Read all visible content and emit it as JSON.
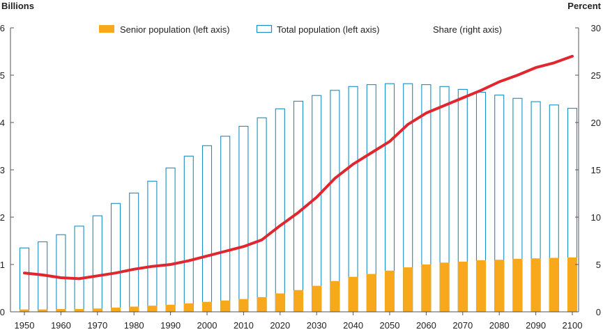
{
  "chart_data": {
    "type": "bar",
    "ylabel_left": "Billions",
    "ylabel_right": "Percent",
    "ylim_left": [
      0,
      6
    ],
    "ylim_right": [
      0,
      30
    ],
    "yticks_left": [
      "0",
      "1",
      "2",
      "3",
      "4",
      "5",
      "6"
    ],
    "yticks_right": [
      "0",
      "5",
      "10",
      "15",
      "20",
      "25",
      "30"
    ],
    "xticks": [
      "1950",
      "1960",
      "1970",
      "1980",
      "1990",
      "2000",
      "2010",
      "2020",
      "2030",
      "2040",
      "2050",
      "2060",
      "2070",
      "2080",
      "2090",
      "2100"
    ],
    "x": [
      1950,
      1955,
      1960,
      1965,
      1970,
      1975,
      1980,
      1985,
      1990,
      1995,
      2000,
      2005,
      2010,
      2015,
      2020,
      2025,
      2030,
      2035,
      2040,
      2045,
      2050,
      2055,
      2060,
      2065,
      2070,
      2075,
      2080,
      2085,
      2090,
      2095,
      2100
    ],
    "legend": [
      {
        "label": "Senior population (left axis)",
        "color": "#f7a81b",
        "style": "filled"
      },
      {
        "label": "Total population (left axis)",
        "color": "#1a8dc4",
        "style": "outline"
      },
      {
        "label": "Share (right axis)",
        "color": "#e0262e",
        "style": "line"
      }
    ],
    "series": [
      {
        "name": "Senior population (left axis)",
        "kind": "bar-filled",
        "axis": "left",
        "color": "#f7a81b",
        "values": [
          0.05,
          0.05,
          0.06,
          0.06,
          0.07,
          0.09,
          0.11,
          0.13,
          0.15,
          0.18,
          0.21,
          0.24,
          0.27,
          0.31,
          0.39,
          0.46,
          0.55,
          0.65,
          0.74,
          0.8,
          0.87,
          0.94,
          1.0,
          1.04,
          1.06,
          1.09,
          1.1,
          1.12,
          1.13,
          1.14,
          1.15
        ]
      },
      {
        "name": "Total population (left axis)",
        "kind": "bar-outline",
        "axis": "left",
        "color": "#1a8dc4",
        "values": [
          1.35,
          1.48,
          1.63,
          1.81,
          2.03,
          2.29,
          2.51,
          2.76,
          3.04,
          3.29,
          3.51,
          3.71,
          3.92,
          4.1,
          4.29,
          4.45,
          4.57,
          4.68,
          4.76,
          4.8,
          4.82,
          4.82,
          4.8,
          4.76,
          4.7,
          4.64,
          4.58,
          4.51,
          4.44,
          4.37,
          4.3
        ]
      },
      {
        "name": "Share (right axis)",
        "kind": "line",
        "axis": "right",
        "color": "#e0262e",
        "values": [
          4.1,
          3.9,
          3.6,
          3.5,
          3.8,
          4.1,
          4.5,
          4.8,
          5.0,
          5.4,
          5.9,
          6.4,
          6.9,
          7.6,
          9.1,
          10.5,
          12.1,
          14.1,
          15.6,
          16.8,
          18.0,
          19.8,
          21.0,
          21.8,
          22.6,
          23.4,
          24.3,
          25.0,
          25.8,
          26.3,
          27.0
        ]
      }
    ]
  }
}
